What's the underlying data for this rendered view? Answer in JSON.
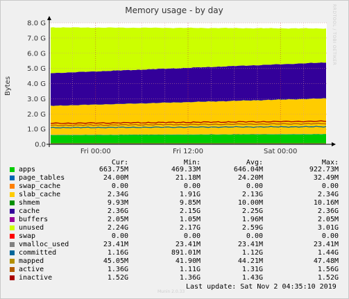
{
  "side_label": "RRDTOOL / TOBI OETIKER",
  "footer": {
    "last_update": "Last update:  Sat Nov  2 04:35:10 2019",
    "credit": "Munin 2.0.33"
  },
  "legend_headers": {
    "cur": "Cur:",
    "min": "Min:",
    "avg": "Avg:",
    "max": "Max:"
  },
  "legend": [
    {
      "name": "apps",
      "color": "#00cc00",
      "cur": "663.75M",
      "min": "469.33M",
      "avg": "646.04M",
      "max": "922.73M"
    },
    {
      "name": "page_tables",
      "color": "#0066b3",
      "cur": "24.00M",
      "min": "21.18M",
      "avg": "24.20M",
      "max": "32.49M"
    },
    {
      "name": "swap_cache",
      "color": "#ff8000",
      "cur": "0.00",
      "min": "0.00",
      "avg": "0.00",
      "max": "0.00"
    },
    {
      "name": "slab_cache",
      "color": "#ffcc00",
      "cur": "2.34G",
      "min": "1.91G",
      "avg": "2.13G",
      "max": "2.34G"
    },
    {
      "name": "shmem",
      "color": "#008f00",
      "cur": "9.93M",
      "min": "9.85M",
      "avg": "10.00M",
      "max": "10.16M"
    },
    {
      "name": "cache",
      "color": "#330099",
      "cur": "2.36G",
      "min": "2.15G",
      "avg": "2.25G",
      "max": "2.36G"
    },
    {
      "name": "buffers",
      "color": "#990099",
      "cur": "2.05M",
      "min": "1.05M",
      "avg": "1.96M",
      "max": "2.05M"
    },
    {
      "name": "unused",
      "color": "#ccff00",
      "cur": "2.24G",
      "min": "2.17G",
      "avg": "2.59G",
      "max": "3.01G"
    },
    {
      "name": "swap",
      "color": "#ff0000",
      "cur": "0.00",
      "min": "0.00",
      "avg": "0.00",
      "max": "0.00"
    },
    {
      "name": "vmalloc_used",
      "color": "#808080",
      "cur": "23.41M",
      "min": "23.41M",
      "avg": "23.41M",
      "max": "23.41M"
    },
    {
      "name": "committed",
      "color": "#006699",
      "cur": "1.16G",
      "min": "891.01M",
      "avg": "1.12G",
      "max": "1.44G"
    },
    {
      "name": "mapped",
      "color": "#b38f00",
      "cur": "45.05M",
      "min": "41.90M",
      "avg": "44.21M",
      "max": "47.48M"
    },
    {
      "name": "active",
      "color": "#b35a00",
      "cur": "1.36G",
      "min": "1.11G",
      "avg": "1.31G",
      "max": "1.56G"
    },
    {
      "name": "inactive",
      "color": "#aa0000",
      "cur": "1.52G",
      "min": "1.36G",
      "avg": "1.43G",
      "max": "1.52G"
    }
  ],
  "chart_data": {
    "type": "area",
    "title": "Memory usage - by day",
    "ylabel": "Bytes",
    "ylim": [
      0,
      8
    ],
    "y_ticks": [
      "0.0",
      "1.0 G",
      "2.0 G",
      "3.0 G",
      "4.0 G",
      "5.0 G",
      "6.0 G",
      "7.0 G",
      "8.0 G"
    ],
    "x_ticks": [
      {
        "label": "Fri 00:00",
        "t": 0.167
      },
      {
        "label": "Fri 12:00",
        "t": 0.5
      },
      {
        "label": "Sat 00:00",
        "t": 0.833
      }
    ],
    "x_minor_ticks": [
      0.0,
      0.083,
      0.25,
      0.333,
      0.417,
      0.583,
      0.667,
      0.75,
      0.917
    ],
    "grid": true,
    "stacked_series_gb": [
      {
        "name": "apps",
        "color": "#00cc00",
        "start": 0.6,
        "end": 0.66
      },
      {
        "name": "page_tables",
        "color": "#0066b3",
        "start": 0.02,
        "end": 0.02
      },
      {
        "name": "slab_cache",
        "color": "#ffcc00",
        "start": 1.91,
        "end": 2.34
      },
      {
        "name": "shmem",
        "color": "#008f00",
        "start": 0.01,
        "end": 0.01
      },
      {
        "name": "cache",
        "color": "#330099",
        "start": 2.15,
        "end": 2.36
      },
      {
        "name": "buffers",
        "color": "#990099",
        "start": 0.002,
        "end": 0.002
      },
      {
        "name": "unused",
        "color": "#ccff00",
        "start": 3.01,
        "end": 2.24
      }
    ],
    "line_series_gb": [
      {
        "name": "inactive",
        "color": "#aa0000",
        "start": 1.38,
        "end": 1.52
      },
      {
        "name": "active",
        "color": "#b35a00",
        "start": 1.25,
        "end": 1.36
      },
      {
        "name": "committed",
        "color": "#006699",
        "start": 1.1,
        "end": 1.16
      },
      {
        "name": "mapped",
        "color": "#b38f00",
        "start": 0.045,
        "end": 0.045
      },
      {
        "name": "vmalloc_used",
        "color": "#808080",
        "start": 0.023,
        "end": 0.023
      }
    ]
  }
}
